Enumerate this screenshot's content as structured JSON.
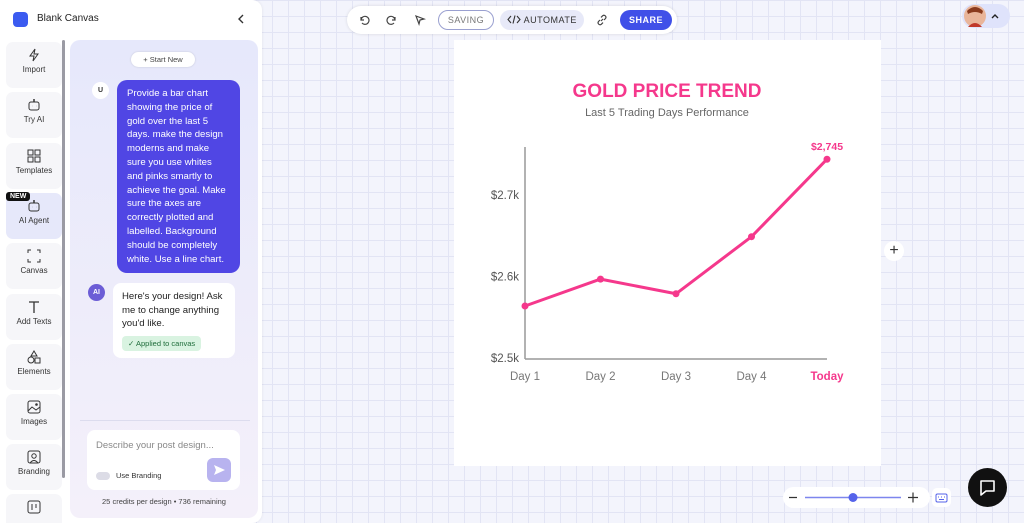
{
  "header": {
    "title": "Blank Canvas"
  },
  "rail": {
    "badge": "NEW",
    "items": [
      "Import",
      "Try AI",
      "Templates",
      "AI Agent",
      "Canvas",
      "Add Texts",
      "Elements",
      "Images",
      "Branding"
    ]
  },
  "chat": {
    "start_new": "Start New",
    "messages": [
      {
        "avatar": "U",
        "text": "Provide a bar chart showing the price of gold over the last 5 days. make the design moderns and make sure you use whites and pinks smartly to achieve the goal. Make sure the axes are correctly plotted and labelled. Background should be completely white. Use a line chart."
      },
      {
        "avatar": "AI",
        "text": "Here's your design! Ask me to change anything you'd like.",
        "tag": "Applied to canvas"
      }
    ],
    "input_placeholder": "Describe your post design...",
    "branding_label": "Use Branding",
    "footer": "25 credits per design • 736 remaining"
  },
  "toolbar": {
    "saving": "SAVING",
    "automate": "AUTOMATE",
    "share": "SHARE"
  },
  "chart_data": {
    "type": "line",
    "title": "GOLD PRICE TREND",
    "subtitle": "Last 5 Trading Days Performance",
    "categories": [
      "Day 1",
      "Day 2",
      "Day 3",
      "Day 4",
      "Today"
    ],
    "series": [
      {
        "name": "Gold price",
        "color": "#f5388c",
        "values": [
          2565,
          2598,
          2580,
          2650,
          2745
        ],
        "value_labels": [
          null,
          null,
          null,
          null,
          "$2,745"
        ]
      }
    ],
    "ylim": [
      2500,
      2760
    ],
    "yticks": [
      {
        "value": 2500,
        "label": "$2.5k"
      },
      {
        "value": 2600,
        "label": "$2.6k"
      },
      {
        "value": 2700,
        "label": "$2.7k"
      }
    ],
    "grid": false
  }
}
